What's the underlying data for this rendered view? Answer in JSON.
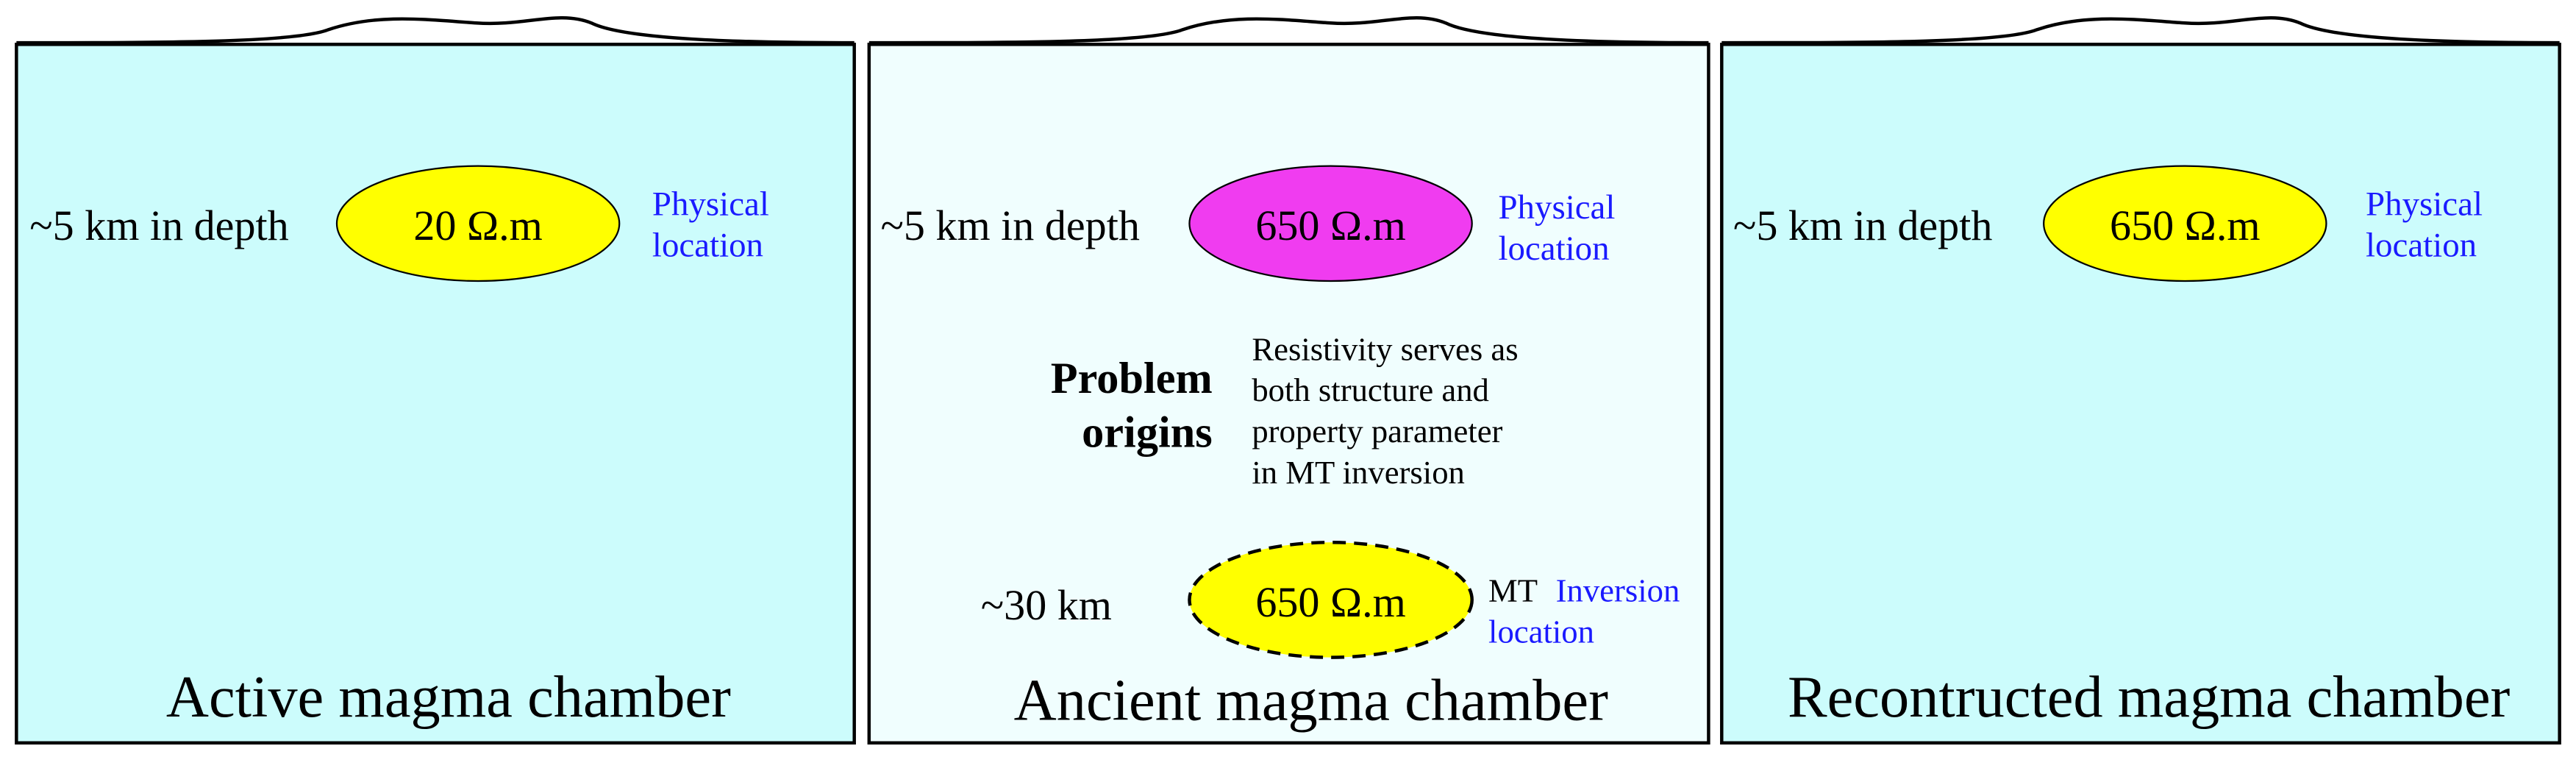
{
  "panels": [
    {
      "depth": "~5 km in depth",
      "resistivity": "20 Ω.m",
      "location": [
        "Physical",
        "location"
      ],
      "title": "Active magma chamber"
    },
    {
      "depth": "~5 km in depth",
      "resistivity": "650 Ω.m",
      "location": [
        "Physical",
        "location"
      ],
      "title": "Ancient magma chamber",
      "problem": [
        "Problem",
        "origins"
      ],
      "note": [
        "Resistivity serves as",
        "both structure and",
        "property parameter",
        "in MT inversion"
      ],
      "deep": {
        "depth": "~30 km",
        "resistivity": "650 Ω.m",
        "method": "MT",
        "location": [
          "Inversion",
          "location"
        ]
      }
    },
    {
      "depth": "~5 km in depth",
      "resistivity": "650 Ω.m",
      "location": [
        "Physical",
        "location"
      ],
      "title": "Recontructed magma chamber"
    }
  ]
}
